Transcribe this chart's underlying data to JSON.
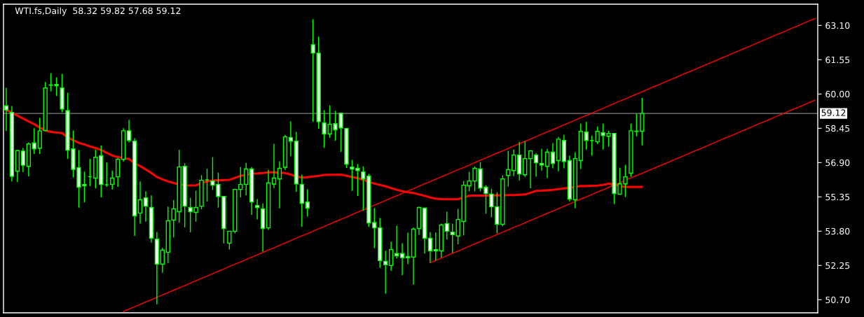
{
  "chart_data": {
    "type": "candlestick",
    "title": "WTI.fs,Daily  58.32 59.82 57.68 59.12",
    "categories": [
      null,
      null,
      null,
      null,
      null,
      null,
      null,
      null,
      null,
      null,
      null,
      null,
      null,
      null,
      null,
      null,
      null,
      null,
      null,
      null,
      null,
      null,
      null,
      null,
      null,
      null,
      null,
      null,
      null,
      null,
      null,
      null,
      null,
      null,
      null,
      null,
      null,
      null,
      null,
      null,
      null,
      null,
      null,
      null,
      null,
      null,
      null,
      null,
      null,
      null,
      null,
      null,
      null,
      null,
      null,
      null,
      null,
      null,
      null,
      null,
      null,
      null,
      null,
      null,
      null,
      null,
      null,
      null,
      null,
      null,
      null,
      null,
      null,
      null,
      null,
      null,
      null,
      null,
      null,
      null,
      null,
      null,
      null,
      null,
      null,
      null,
      null,
      null,
      null,
      null,
      null,
      null,
      null,
      null,
      null,
      null,
      null,
      null,
      null,
      null,
      null,
      null,
      null,
      null,
      null,
      null,
      null,
      null,
      null,
      null,
      null,
      null,
      null,
      null,
      null,
      null,
      null,
      null,
      null,
      null,
      null,
      null,
      null,
      null,
      null,
      null,
      null,
      null,
      null,
      null,
      null,
      null,
      null,
      null,
      null,
      null,
      null,
      null,
      null,
      null,
      null,
      null,
      null,
      null,
      null,
      null
    ],
    "ylim": [
      50.11,
      64.06
    ],
    "yticks": [
      {
        "value": 50.7,
        "label": "50.70"
      },
      {
        "value": 52.25,
        "label": "52.25"
      },
      {
        "value": 53.8,
        "label": "53.80"
      },
      {
        "value": 55.35,
        "label": "55.35"
      },
      {
        "value": 56.9,
        "label": "56.90"
      },
      {
        "value": 58.45,
        "label": "58.45"
      },
      {
        "value": 60.0,
        "label": "60.00"
      },
      {
        "value": 61.55,
        "label": "61.55"
      },
      {
        "value": 63.1,
        "label": "63.10"
      }
    ],
    "tick_labels": "y",
    "ref_lines": [
      {
        "axis": "y",
        "value": 59.12,
        "label": "59.12",
        "color": "#808080"
      }
    ],
    "color": "#00ff00",
    "colors": [
      "#ffffff",
      "#ffffff",
      "#000000",
      "#ffffff",
      "#000000",
      "#ffffff",
      "#000000",
      "#000000",
      "#ffffff",
      "#ffffff",
      "#ffffff",
      "#ffffff",
      "#ffffff",
      "#ffffff",
      "#ffffff",
      null,
      "#000000",
      "#ffffff",
      null,
      "#000000",
      "#000000",
      "#000000",
      "#ffffff",
      "#ffffff",
      "#000000",
      "#ffffff",
      "#ffffff",
      "#ffffff",
      "#000000",
      "#000000",
      "#000000",
      "#000000",
      "#ffffff",
      "#ffffff",
      "#000000",
      "#000000",
      null,
      "#ffffff",
      "#ffffff",
      "#ffffff",
      "#000000",
      "#000000",
      "#000000",
      "#000000",
      "#ffffff",
      "#ffffff",
      "#ffffff",
      "#000000",
      "#000000",
      "#000000",
      "#000000",
      "#ffffff",
      "#ffffff",
      "#ffffff",
      "#ffffff",
      "#ffffff",
      "#ffffff",
      "#ffffff",
      "#000000",
      "#ffffff",
      "#ffffff",
      "#ffffff",
      "#ffffff",
      "#ffffff",
      "#ffffff",
      "#ffffff",
      "#ffffff",
      "#ffffff",
      "#ffffff",
      "#000000",
      "#ffffff",
      "#ffffff",
      "#ffffff",
      "#000000",
      "#000000",
      "#ffffff",
      "#ffffff",
      "#ffffff",
      "#000000",
      "#ffffff",
      "#ffffff",
      "#000000",
      "#000000",
      "#000000",
      "#000000",
      "#ffffff",
      "#ffffff",
      "#ffffff",
      "#ffffff",
      "#000000",
      "#000000",
      "#000000",
      "#ffffff",
      "#000000",
      "#000000",
      "#ffffff",
      "#ffffff",
      "#000000",
      "#ffffff",
      "#000000",
      "#ffffff",
      "#ffffff",
      "#000000",
      "#000000",
      "#ffffff",
      null,
      "#000000",
      "#ffffff",
      "#000000",
      "#ffffff",
      "#000000",
      "#000000",
      "#000000",
      "#000000",
      "#000000",
      null,
      null,
      null,
      null,
      null,
      null,
      null,
      null,
      null,
      null,
      null,
      null,
      null,
      null,
      null,
      null,
      null,
      null,
      null,
      null,
      null,
      null,
      null,
      null,
      null,
      null,
      null,
      null,
      null,
      null,
      null
    ],
    "ohlc": [
      [
        59.47,
        60.28,
        58.33,
        59.28
      ],
      [
        59.17,
        59.46,
        56.05,
        56.28
      ],
      [
        56.51,
        57.47,
        56.02,
        57.44
      ],
      [
        57.42,
        57.56,
        56.47,
        56.78
      ],
      [
        56.73,
        57.81,
        56.28,
        57.74
      ],
      [
        57.79,
        58.45,
        57.29,
        57.52
      ],
      [
        57.55,
        58.92,
        57.29,
        58.33
      ],
      [
        58.35,
        60.54,
        58.33,
        60.27
      ],
      [
        60.41,
        60.94,
        60.12,
        60.4
      ],
      [
        60.43,
        60.75,
        59.91,
        60.37
      ],
      [
        60.27,
        60.91,
        59.17,
        59.32
      ],
      [
        59.25,
        60.06,
        57.07,
        57.46
      ],
      [
        57.52,
        58.35,
        56.23,
        56.59
      ],
      [
        56.67,
        57.47,
        54.86,
        55.79
      ],
      [
        55.91,
        56.49,
        55.1,
        55.85
      ],
      [
        56.26,
        57.07,
        55.84,
        56.26
      ],
      [
        56.2,
        57.49,
        55.73,
        57.14
      ],
      [
        57.21,
        57.67,
        55.33,
        55.91
      ],
      [
        55.9,
        56.9,
        55.8,
        55.9
      ],
      [
        55.91,
        56.54,
        55.68,
        56.2
      ],
      [
        56.26,
        57.12,
        55.8,
        57.05
      ],
      [
        57.05,
        58.45,
        56.94,
        58.34
      ],
      [
        58.34,
        58.83,
        57.81,
        57.9
      ],
      [
        57.87,
        58.0,
        53.59,
        54.49
      ],
      [
        54.62,
        56.05,
        54.14,
        55.22
      ],
      [
        55.31,
        55.6,
        54.23,
        54.93
      ],
      [
        54.87,
        55.42,
        53.28,
        53.48
      ],
      [
        53.44,
        53.76,
        50.49,
        52.31
      ],
      [
        52.31,
        53.05,
        51.92,
        52.94
      ],
      [
        52.85,
        54.91,
        52.36,
        54.27
      ],
      [
        54.3,
        55.2,
        53.52,
        54.81
      ],
      [
        54.68,
        57.47,
        54.19,
        56.7
      ],
      [
        56.73,
        56.87,
        53.97,
        54.93
      ],
      [
        54.87,
        55.31,
        53.75,
        54.68
      ],
      [
        54.65,
        55.63,
        54.23,
        54.87
      ],
      [
        54.93,
        56.33,
        54.79,
        56.1
      ],
      [
        56.12,
        56.62,
        55.14,
        56.12
      ],
      [
        56.07,
        57.15,
        55.66,
        55.88
      ],
      [
        55.91,
        56.45,
        54.86,
        55.37
      ],
      [
        55.37,
        55.37,
        53.25,
        53.92
      ],
      [
        53.26,
        53.8,
        52.97,
        53.8
      ],
      [
        53.8,
        55.72,
        53.7,
        55.69
      ],
      [
        55.69,
        56.7,
        55.33,
        55.91
      ],
      [
        55.91,
        56.89,
        55.42,
        56.61
      ],
      [
        56.61,
        56.7,
        54.54,
        55.12
      ],
      [
        54.96,
        55.25,
        54.33,
        54.87
      ],
      [
        54.81,
        55.05,
        52.88,
        53.92
      ],
      [
        53.95,
        56.58,
        53.86,
        55.98
      ],
      [
        55.93,
        57.75,
        55.75,
        56.2
      ],
      [
        56.16,
        56.96,
        54.83,
        56.64
      ],
      [
        56.69,
        58.15,
        56.56,
        58.06
      ],
      [
        58.03,
        58.76,
        57.19,
        57.87
      ],
      [
        57.87,
        58.29,
        55.58,
        55.94
      ],
      [
        55.91,
        56.35,
        54.0,
        55.06
      ],
      [
        55.12,
        55.69,
        54.46,
        54.84
      ],
      [
        62.23,
        63.38,
        58.74,
        61.85
      ],
      [
        61.85,
        62.59,
        58.43,
        58.75
      ],
      [
        58.69,
        59.27,
        57.57,
        58.19
      ],
      [
        58.19,
        59.49,
        58.02,
        58.63
      ],
      [
        58.66,
        59.24,
        57.89,
        58.38
      ],
      [
        59.13,
        59.13,
        57.38,
        58.47
      ],
      [
        58.44,
        58.47,
        56.66,
        56.83
      ],
      [
        56.7,
        57.02,
        55.62,
        56.61
      ],
      [
        56.64,
        56.83,
        55.39,
        56.54
      ],
      [
        56.48,
        56.73,
        54.73,
        56.16
      ],
      [
        56.29,
        56.39,
        53.99,
        54.17
      ],
      [
        54.19,
        54.84,
        53.03,
        53.95
      ],
      [
        53.95,
        54.4,
        52.14,
        52.47
      ],
      [
        52.44,
        52.91,
        50.98,
        52.28
      ],
      [
        52.25,
        53.32,
        52.01,
        52.97
      ],
      [
        52.79,
        54.05,
        52.56,
        52.69
      ],
      [
        52.79,
        53.26,
        51.81,
        52.6
      ],
      [
        52.66,
        53.73,
        52.31,
        52.6
      ],
      [
        52.63,
        53.96,
        51.38,
        53.89
      ],
      [
        53.92,
        54.9,
        53.64,
        54.87
      ],
      [
        54.84,
        54.87,
        52.79,
        53.48
      ],
      [
        53.48,
        53.76,
        52.37,
        52.91
      ],
      [
        52.97,
        53.74,
        52.47,
        52.91
      ],
      [
        52.91,
        54.14,
        52.6,
        54.08
      ],
      [
        54.14,
        54.68,
        53.42,
        53.8
      ],
      [
        53.76,
        54.14,
        52.82,
        53.64
      ],
      [
        53.58,
        54.81,
        53.21,
        54.33
      ],
      [
        54.24,
        56.07,
        53.61,
        55.88
      ],
      [
        55.85,
        56.48,
        55.6,
        56.07
      ],
      [
        56.07,
        56.73,
        55.6,
        56.64
      ],
      [
        56.61,
        56.92,
        55.6,
        55.75
      ],
      [
        55.79,
        55.88,
        54.59,
        55.5
      ],
      [
        55.47,
        55.72,
        54.43,
        54.9
      ],
      [
        54.9,
        55.56,
        53.7,
        54.11
      ],
      [
        54.11,
        56.32,
        54.02,
        56.16
      ],
      [
        56.32,
        57.43,
        55.82,
        56.58
      ],
      [
        56.54,
        57.49,
        56.29,
        57.24
      ],
      [
        57.24,
        57.84,
        56.1,
        56.39
      ],
      [
        56.35,
        57.87,
        56.25,
        57.08
      ],
      [
        57.08,
        57.46,
        55.74,
        57.43
      ],
      [
        57.24,
        57.33,
        56.26,
        56.89
      ],
      [
        56.86,
        57.52,
        56.54,
        56.79
      ],
      [
        56.73,
        57.52,
        56.2,
        57.37
      ],
      [
        57.37,
        57.78,
        56.64,
        56.86
      ],
      [
        56.99,
        58.06,
        56.51,
        57.96
      ],
      [
        57.9,
        58.15,
        56.64,
        56.95
      ],
      [
        56.99,
        57.21,
        55.15,
        55.25
      ],
      [
        55.22,
        57.37,
        54.84,
        57.08
      ],
      [
        56.99,
        58.66,
        56.61,
        58.31
      ],
      [
        58.28,
        58.74,
        57.49,
        57.9
      ],
      [
        57.9,
        58.12,
        57.21,
        57.9
      ],
      [
        57.84,
        58.53,
        57.74,
        58.31
      ],
      [
        58.25,
        58.66,
        57.49,
        58.12
      ],
      [
        58.09,
        58.34,
        57.62,
        58.22
      ],
      [
        58.22,
        58.22,
        55.03,
        55.5
      ],
      [
        55.47,
        56.67,
        55.47,
        55.94
      ],
      [
        55.94,
        56.8,
        55.34,
        56.26
      ],
      [
        56.42,
        58.66,
        56.26,
        58.34
      ],
      [
        58.31,
        59.11,
        58.09,
        58.32
      ],
      [
        58.32,
        59.82,
        57.68,
        59.12
      ],
      null,
      null,
      null,
      null,
      null,
      null,
      null,
      null,
      null,
      null,
      null,
      null,
      null,
      null,
      null,
      null,
      null,
      null,
      null,
      null,
      null,
      null,
      null,
      null,
      null,
      null,
      null,
      null,
      null,
      null,
      null
    ],
    "series": [
      {
        "type": "line",
        "color": "#ff0000",
        "values": [
          59.28,
          59.16,
          59.02,
          58.89,
          58.76,
          58.64,
          58.48,
          58.35,
          58.29,
          58.26,
          58.23,
          58.04,
          57.91,
          57.79,
          57.72,
          57.63,
          57.56,
          57.47,
          57.34,
          57.22,
          57.15,
          57.11,
          57.06,
          56.87,
          56.74,
          56.59,
          56.43,
          56.25,
          56.14,
          56.05,
          55.98,
          55.92,
          55.87,
          55.87,
          55.87,
          55.97,
          56.05,
          56.09,
          56.1,
          56.11,
          56.12,
          56.21,
          56.3,
          56.35,
          56.4,
          56.41,
          56.43,
          56.46,
          56.46,
          56.44,
          56.43,
          56.36,
          56.28,
          56.22,
          56.24,
          56.27,
          56.3,
          56.34,
          56.35,
          56.35,
          56.36,
          56.3,
          56.25,
          56.2,
          56.12,
          56.03,
          55.95,
          55.89,
          55.83,
          55.75,
          55.67,
          55.61,
          55.56,
          55.53,
          55.46,
          55.4,
          55.32,
          55.27,
          55.25,
          55.24,
          55.24,
          55.25,
          55.32,
          55.4,
          55.41,
          55.41,
          55.41,
          55.41,
          55.42,
          55.42,
          55.43,
          55.43,
          55.45,
          55.46,
          55.54,
          55.62,
          55.63,
          55.65,
          55.67,
          55.7,
          55.73,
          55.76,
          55.8,
          55.84,
          55.84,
          55.85,
          55.86,
          55.89,
          55.95,
          55.91,
          55.84,
          55.8,
          55.8,
          55.8,
          55.8,
          null,
          null,
          null,
          null,
          null,
          null,
          null,
          null,
          null,
          null,
          null,
          null,
          null,
          null,
          null,
          null,
          null,
          null,
          null,
          null,
          null,
          null,
          null,
          null,
          null,
          null,
          null,
          null,
          null,
          null,
          null
        ]
      },
      {
        "type": "line",
        "color": "#ff0000",
        "values": [
          null,
          null,
          null,
          null,
          null,
          null,
          null,
          null,
          null,
          null,
          null,
          null,
          null,
          null,
          null,
          null,
          null,
          null,
          null,
          null,
          null,
          50.17,
          50.28,
          50.38,
          50.49,
          50.6,
          50.7,
          50.81,
          50.92,
          51.02,
          51.13,
          51.24,
          51.34,
          51.45,
          51.56,
          51.67,
          51.77,
          51.88,
          51.99,
          52.09,
          52.2,
          52.31,
          52.41,
          52.52,
          52.63,
          52.73,
          52.84,
          52.95,
          53.05,
          53.16,
          53.27,
          53.37,
          53.48,
          53.59,
          53.69,
          53.8,
          53.91,
          54.01,
          54.12,
          54.23,
          54.34,
          54.44,
          54.55,
          54.66,
          54.76,
          54.87,
          54.98,
          55.08,
          55.19,
          55.3,
          55.4,
          55.51,
          55.62,
          55.72,
          55.83,
          55.94,
          56.04,
          56.15,
          56.26,
          56.36,
          56.47,
          56.58,
          56.68,
          56.79,
          56.9,
          57.01,
          57.11,
          57.22,
          57.33,
          57.43,
          57.54,
          57.65,
          57.75,
          57.86,
          57.97,
          58.07,
          58.18,
          58.29,
          58.39,
          58.5,
          58.61,
          58.71,
          58.82,
          58.93,
          59.03,
          59.14,
          59.25,
          59.35,
          59.46,
          59.57,
          59.68,
          59.78,
          59.89,
          60.0,
          60.1,
          60.21,
          60.32,
          60.42,
          60.53,
          60.64,
          60.74,
          60.85,
          60.96,
          61.06,
          61.17,
          61.28,
          61.38,
          61.49,
          61.6,
          61.7,
          61.81,
          61.92,
          62.02,
          62.13,
          62.24,
          62.35,
          62.45,
          62.56,
          62.67,
          62.77,
          62.88,
          62.99,
          63.09,
          63.2,
          63.31,
          63.41
        ]
      },
      {
        "type": "line",
        "color": "#ff0000",
        "values": [
          null,
          null,
          null,
          null,
          null,
          null,
          null,
          null,
          null,
          null,
          null,
          null,
          null,
          null,
          null,
          null,
          null,
          null,
          null,
          null,
          null,
          null,
          null,
          null,
          null,
          null,
          null,
          null,
          null,
          null,
          null,
          null,
          null,
          null,
          null,
          null,
          null,
          null,
          null,
          null,
          null,
          null,
          null,
          null,
          null,
          null,
          null,
          null,
          null,
          null,
          null,
          null,
          null,
          null,
          null,
          null,
          null,
          null,
          null,
          null,
          null,
          null,
          null,
          null,
          null,
          null,
          null,
          null,
          null,
          null,
          null,
          null,
          null,
          null,
          null,
          null,
          52.37,
          52.48,
          52.58,
          52.69,
          52.8,
          52.9,
          53.01,
          53.12,
          53.22,
          53.33,
          53.44,
          53.54,
          53.65,
          53.75,
          53.86,
          53.97,
          54.07,
          54.18,
          54.29,
          54.39,
          54.5,
          54.61,
          54.71,
          54.82,
          54.93,
          55.03,
          55.14,
          55.25,
          55.35,
          55.46,
          55.57,
          55.67,
          55.78,
          55.89,
          55.99,
          56.1,
          56.21,
          56.31,
          56.42,
          56.53,
          56.63,
          56.74,
          56.84,
          56.95,
          57.06,
          57.16,
          57.27,
          57.38,
          57.48,
          57.59,
          57.7,
          57.8,
          57.91,
          58.02,
          58.12,
          58.23,
          58.34,
          58.44,
          58.55,
          58.66,
          58.76,
          58.87,
          58.98,
          59.08,
          59.19,
          59.3,
          59.4,
          59.51,
          59.62,
          59.72
        ]
      }
    ]
  }
}
